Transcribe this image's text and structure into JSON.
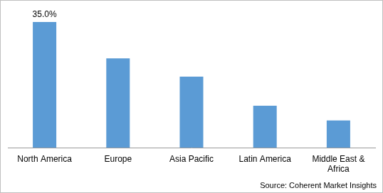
{
  "chart_data": {
    "type": "bar",
    "categories": [
      "North America",
      "Europe",
      "Asia Pacific",
      "Latin America",
      "Middle East & Africa"
    ],
    "values": [
      35.0,
      24.9,
      19.8,
      11.7,
      7.6
    ],
    "value_labels": [
      "35.0%",
      null,
      null,
      null,
      null
    ],
    "data_labels": true,
    "color": "#5b9bd5",
    "ylim": [
      0,
      35
    ],
    "grid": false,
    "tick_labels": "x",
    "source": "Source: Coherent Market Insights"
  }
}
